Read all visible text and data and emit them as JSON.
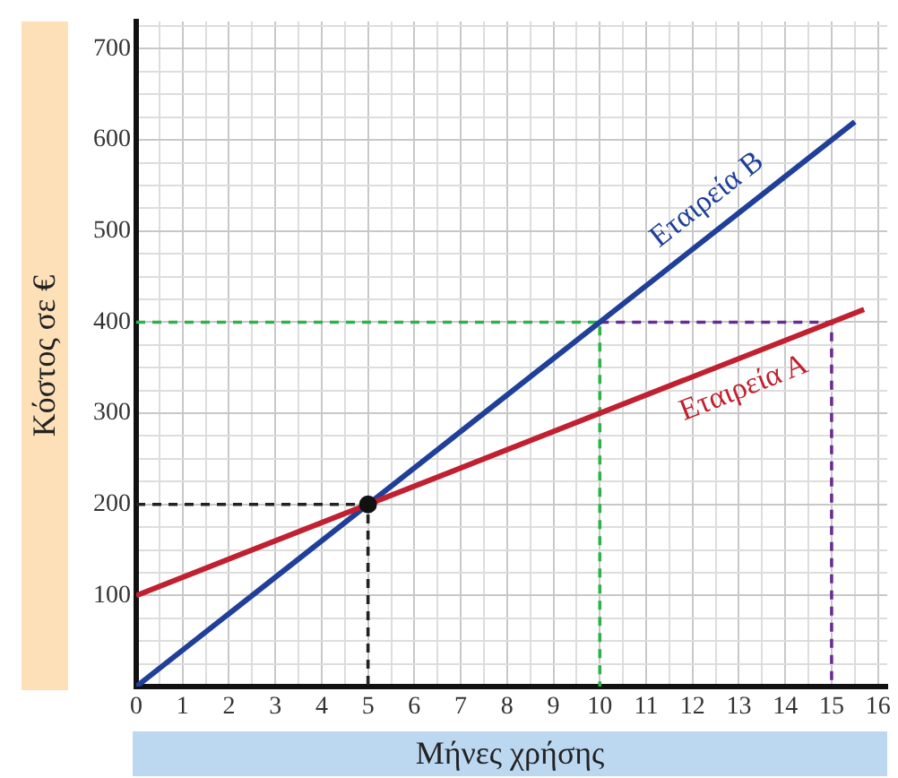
{
  "chart_data": {
    "type": "line",
    "xlabel": "Μήνες χρήσης",
    "ylabel": "Κόστος σε €",
    "xlim": [
      0,
      16.2
    ],
    "ylim": [
      0,
      730
    ],
    "xticks": [
      0,
      {
        "value": 0.5,
        "label": null
      },
      1,
      {
        "value": 1.5,
        "label": null
      },
      2,
      {
        "value": 2.5,
        "label": null
      },
      3,
      {
        "value": 3.5,
        "label": null
      },
      4,
      {
        "value": 4.5,
        "label": null
      },
      5,
      {
        "value": 5.5,
        "label": null
      },
      6,
      {
        "value": 6.5,
        "label": null
      },
      7,
      {
        "value": 7.5,
        "label": null
      },
      8,
      {
        "value": 8.5,
        "label": null
      },
      9,
      {
        "value": 9.5,
        "label": null
      },
      10,
      {
        "value": 10.5,
        "label": null
      },
      11,
      {
        "value": 11.5,
        "label": null
      },
      12,
      {
        "value": 12.5,
        "label": null
      },
      13,
      {
        "value": 13.5,
        "label": null
      },
      14,
      {
        "value": 14.5,
        "label": null
      },
      15,
      {
        "value": 15.5,
        "label": null
      },
      16
    ],
    "yticks": [
      {
        "value": 0,
        "label": null
      },
      {
        "value": 25,
        "label": null
      },
      {
        "value": 50,
        "label": null
      },
      {
        "value": 75,
        "label": null
      },
      100,
      {
        "value": 125,
        "label": null
      },
      {
        "value": 150,
        "label": null
      },
      {
        "value": 175,
        "label": null
      },
      200,
      {
        "value": 225,
        "label": null
      },
      {
        "value": 250,
        "label": null
      },
      {
        "value": 275,
        "label": null
      },
      300,
      {
        "value": 325,
        "label": null
      },
      {
        "value": 350,
        "label": null
      },
      {
        "value": 375,
        "label": null
      },
      400,
      {
        "value": 425,
        "label": null
      },
      {
        "value": 450,
        "label": null
      },
      {
        "value": 475,
        "label": null
      },
      500,
      {
        "value": 525,
        "label": null
      },
      {
        "value": 550,
        "label": null
      },
      {
        "value": 575,
        "label": null
      },
      600,
      {
        "value": 625,
        "label": null
      },
      {
        "value": 650,
        "label": null
      },
      {
        "value": 675,
        "label": null
      },
      700,
      {
        "value": 725,
        "label": null
      }
    ],
    "grid": true,
    "legend": false,
    "series": [
      {
        "name": "Εταιρεία Α",
        "color": "#c0202f",
        "x": [
          0,
          15.7
        ],
        "values": [
          100,
          414
        ],
        "marker": "none",
        "line_style": "solid"
      },
      {
        "name": "Εταιρεία Β",
        "color": "#1f3f99",
        "x": [
          0,
          15.5
        ],
        "values": [
          0,
          620
        ],
        "marker": "none",
        "line_style": "solid"
      },
      {
        "color": "#222222",
        "x": [
          0,
          5,
          5
        ],
        "values": [
          200,
          200,
          0
        ],
        "marker": "none",
        "line_style": "dashed"
      },
      {
        "color": "#2db34a",
        "x": [
          0,
          10,
          10
        ],
        "values": [
          400,
          400,
          0
        ],
        "marker": "none",
        "line_style": "dashed"
      },
      {
        "color": "#6a2c91",
        "x": [
          10,
          15,
          15
        ],
        "values": [
          400,
          400,
          0
        ],
        "marker": "none",
        "line_style": "dashed"
      },
      {
        "type": "scatter",
        "color": "#111111",
        "x": [
          5
        ],
        "values": [
          200
        ],
        "marker": "circle"
      }
    ]
  }
}
